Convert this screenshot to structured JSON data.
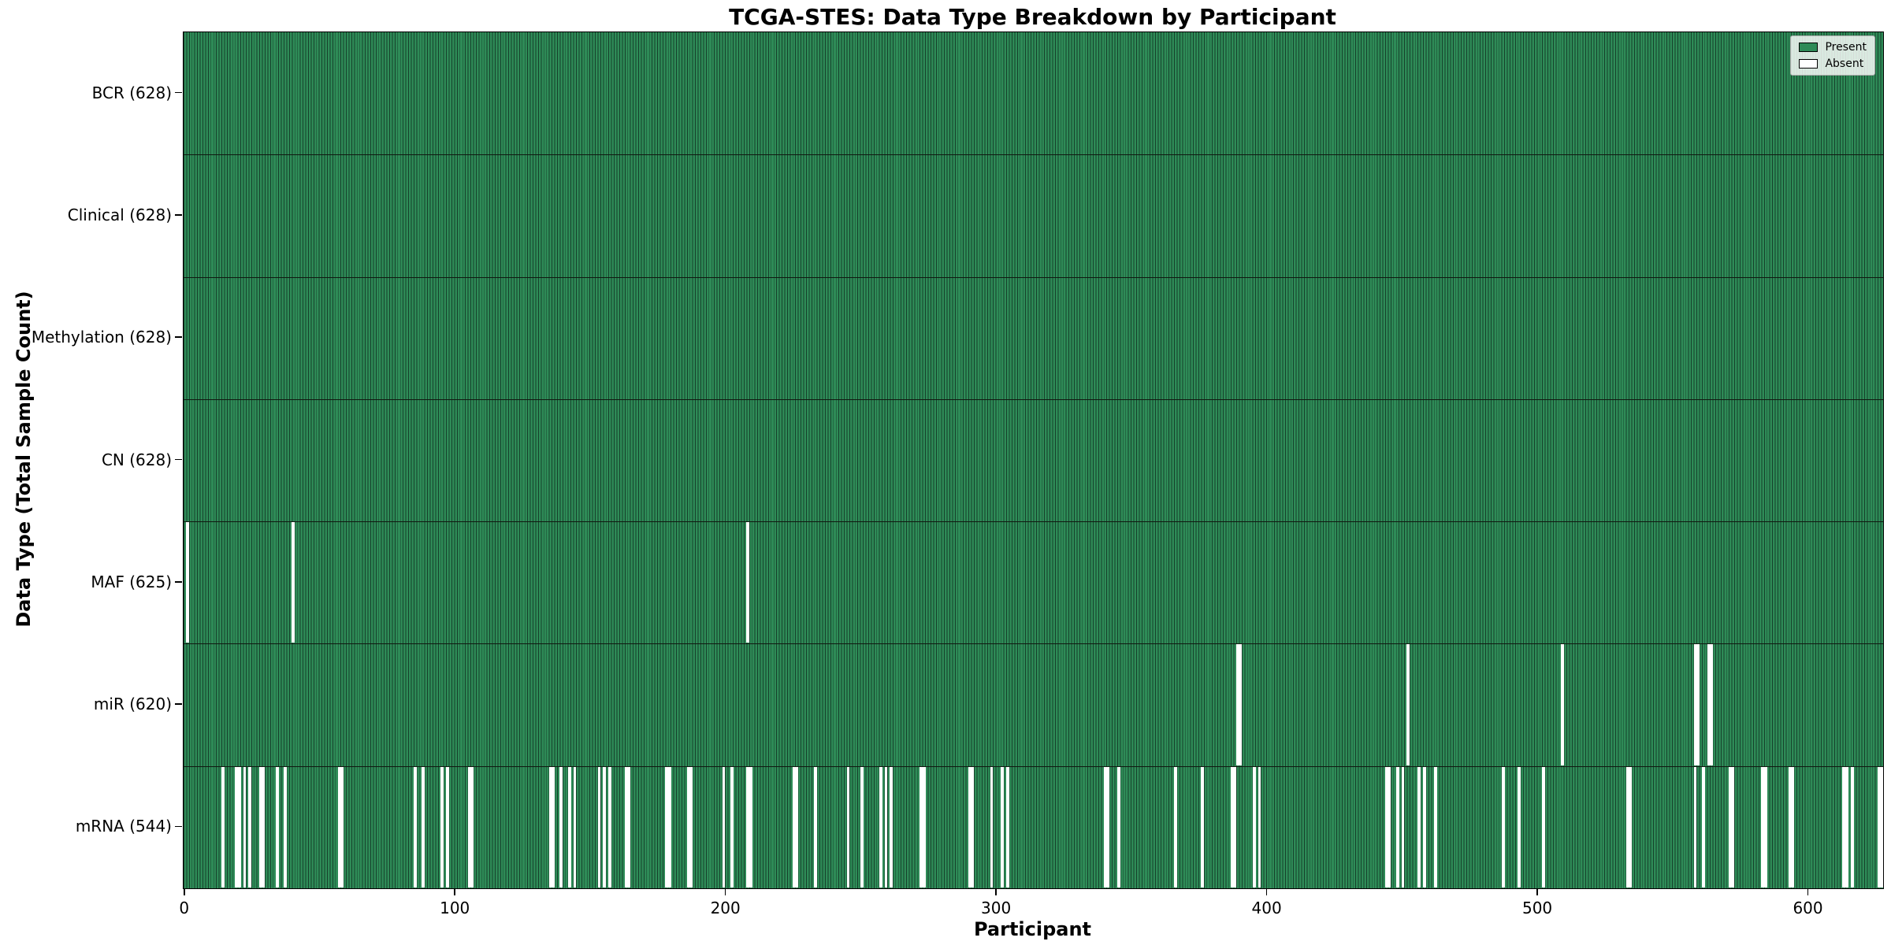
{
  "title": "TCGA-STES: Data Type Breakdown by Participant",
  "colors": {
    "present": "#2e8b57",
    "present_edge": "#16402b",
    "absent": "#ffffff",
    "axis": "#000000"
  },
  "legend": {
    "present_label": "Present",
    "absent_label": "Absent",
    "position": "upper right"
  },
  "chart_data": {
    "type": "heatmap",
    "title": "TCGA-STES: Data Type Breakdown by Participant",
    "xlabel": "Participant",
    "ylabel": "Data Type (Total Sample Count)",
    "legend_labels": [
      "Present",
      "Absent"
    ],
    "legend_position": "upper right",
    "grid": false,
    "n_participants": 628,
    "x_range": [
      0,
      628
    ],
    "x_ticks": [
      0,
      100,
      200,
      300,
      400,
      500,
      600
    ],
    "rows_top_to_bottom": [
      {
        "label": "BCR (628)",
        "name": "BCR",
        "present_count": 628,
        "absent_participants": []
      },
      {
        "label": "Clinical (628)",
        "name": "Clinical",
        "present_count": 628,
        "absent_participants": []
      },
      {
        "label": "Methylation (628)",
        "name": "Methylation",
        "present_count": 628,
        "absent_participants": []
      },
      {
        "label": "CN (628)",
        "name": "CN",
        "present_count": 628,
        "absent_participants": []
      },
      {
        "label": "MAF (625)",
        "name": "MAF",
        "present_count": 625,
        "absent_participants": [
          1,
          40,
          208
        ]
      },
      {
        "label": "miR (620)",
        "name": "miR",
        "present_count": 620,
        "absent_participants": [
          389,
          390,
          452,
          509,
          558,
          559,
          563,
          564
        ]
      },
      {
        "label": "mRNA (544)",
        "name": "mRNA",
        "present_count": 544,
        "absent_participants": [
          14,
          19,
          20,
          22,
          24,
          28,
          29,
          34,
          37,
          57,
          58,
          85,
          88,
          95,
          97,
          105,
          106,
          135,
          136,
          139,
          142,
          144,
          153,
          155,
          157,
          163,
          164,
          178,
          179,
          186,
          187,
          199,
          202,
          208,
          209,
          225,
          226,
          233,
          245,
          250,
          257,
          259,
          261,
          272,
          273,
          290,
          291,
          298,
          302,
          304,
          340,
          341,
          345,
          366,
          376,
          387,
          388,
          395,
          397,
          444,
          445,
          448,
          450,
          456,
          458,
          462,
          487,
          493,
          502,
          533,
          534,
          558,
          561,
          571,
          572,
          583,
          584,
          593,
          594,
          613,
          614,
          616,
          626,
          627
        ]
      }
    ]
  }
}
